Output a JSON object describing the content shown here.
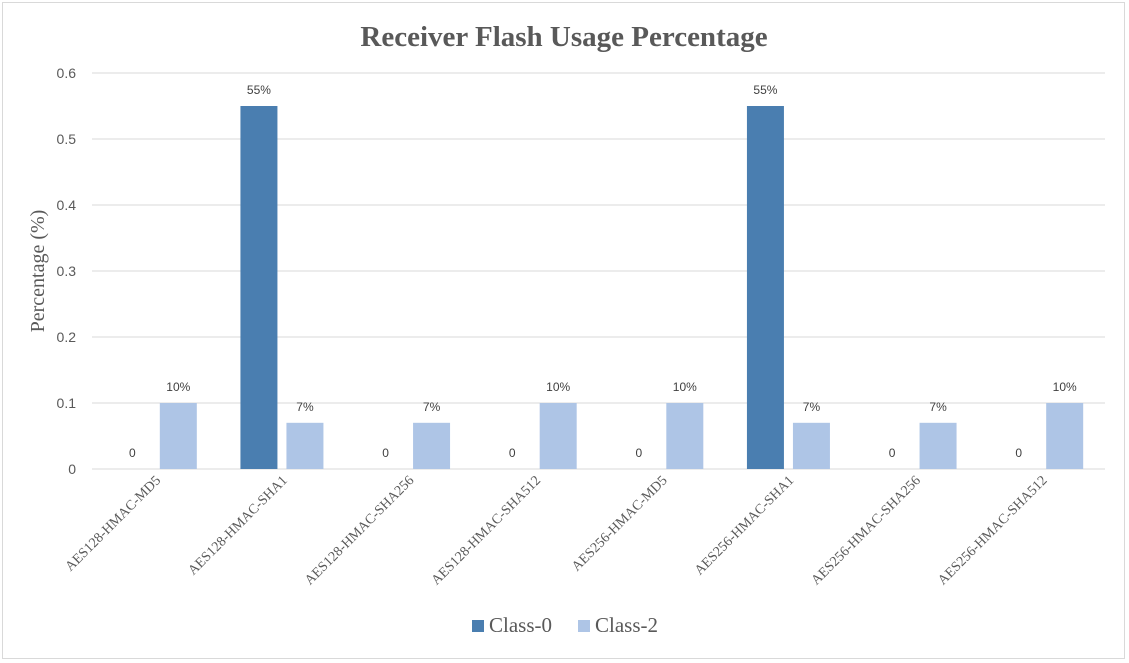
{
  "chart_data": {
    "type": "bar",
    "title": "Receiver Flash Usage Percentage",
    "xlabel": "",
    "ylabel": "Percentage (%)",
    "ylim": [
      0,
      0.6
    ],
    "yticks": [
      "0",
      "0.1",
      "0.2",
      "0.3",
      "0.4",
      "0.5",
      "0.6"
    ],
    "grid": true,
    "legend_position": "bottom",
    "categories": [
      "AES128-HMAC-MD5",
      "AES128-HMAC-SHA1",
      "AES128-HMAC-SHA256",
      "AES128-HMAC-SHA512",
      "AES256-HMAC-MD5",
      "AES256-HMAC-SHA1",
      "AES256-HMAC-SHA256",
      "AES256-HMAC-SHA512"
    ],
    "series": [
      {
        "name": "Class-0",
        "color": "#4a7eb0",
        "values": [
          0,
          0.55,
          0,
          0,
          0,
          0.55,
          0,
          0
        ],
        "labels": [
          "0",
          "55%",
          "0",
          "0",
          "0",
          "55%",
          "0",
          "0"
        ]
      },
      {
        "name": "Class-2",
        "color": "#aec5e6",
        "values": [
          0.1,
          0.07,
          0.07,
          0.1,
          0.1,
          0.07,
          0.07,
          0.1
        ],
        "labels": [
          "10%",
          "7%",
          "7%",
          "10%",
          "10%",
          "7%",
          "7%",
          "10%"
        ]
      }
    ]
  }
}
